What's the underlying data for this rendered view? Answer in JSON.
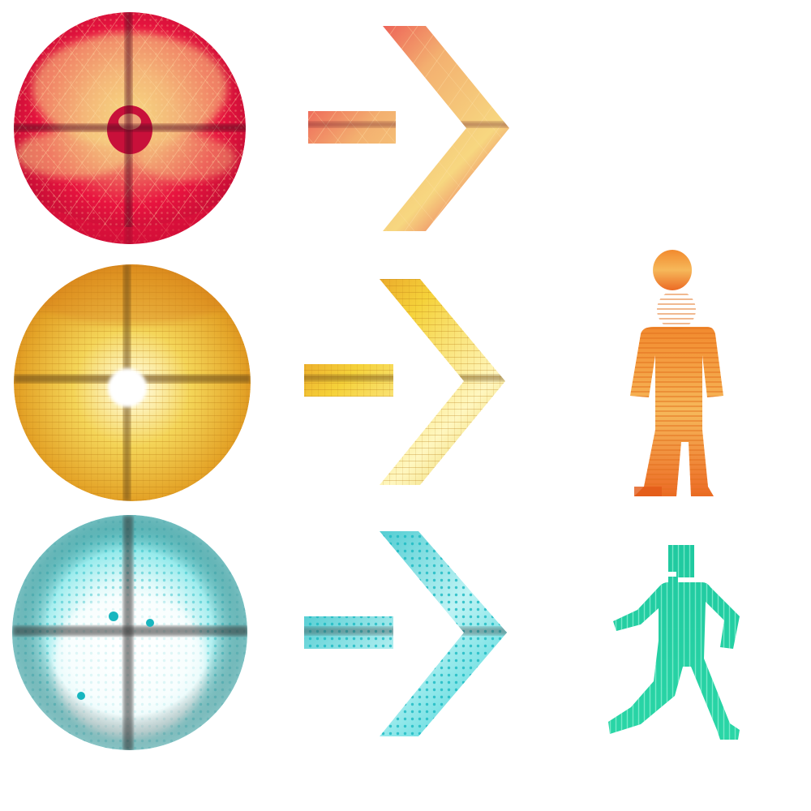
{
  "palette": {
    "red": {
      "base": "#e8123f",
      "deep": "#b80a30",
      "glow": "#f6e08a",
      "lattice": "#ffd9a0"
    },
    "yellow": {
      "base": "#f2c93a",
      "deep": "#d98a1c",
      "glow": "#fff7c2",
      "lattice": "#e8a830"
    },
    "cyan": {
      "base": "#2ed6d8",
      "deep": "#17b6bd",
      "glow": "#ffffff",
      "lattice": "#1ec8cf"
    },
    "orange_figure": {
      "base": "#f2a23a",
      "deep": "#e26a1e",
      "lattice": "#f7d080"
    },
    "green_figure": {
      "base": "#2ad3a3",
      "deep": "#14b98a",
      "lattice": "#8ff0d4"
    }
  },
  "signals": [
    {
      "row": "red",
      "icons": [
        "circle-lamp-icon",
        "arrow-right-icon"
      ]
    },
    {
      "row": "yellow",
      "icons": [
        "circle-lamp-icon",
        "arrow-right-icon",
        "standing-pedestrian-icon"
      ]
    },
    {
      "row": "cyan",
      "icons": [
        "circle-lamp-icon",
        "arrow-right-icon",
        "walking-pedestrian-icon"
      ]
    }
  ]
}
